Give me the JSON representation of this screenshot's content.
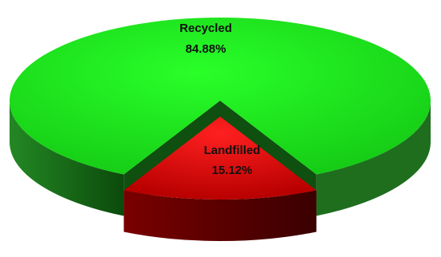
{
  "chart_data": {
    "type": "pie",
    "style": "3d-exploded",
    "title": "",
    "slices": [
      {
        "name": "Recycled",
        "value": 84.88,
        "percent_label": "84.88%",
        "color": "#21d421"
      },
      {
        "name": "Landfilled",
        "value": 15.12,
        "percent_label": "15.12%",
        "color": "#e00000"
      }
    ],
    "legend": "none"
  }
}
